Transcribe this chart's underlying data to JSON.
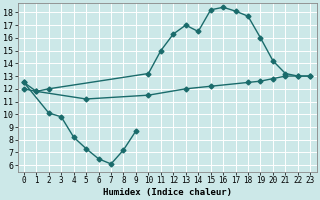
{
  "xlabel": "Humidex (Indice chaleur)",
  "bg_color": "#cce8e8",
  "line_color": "#1a6b6b",
  "grid_color": "#ffffff",
  "xlim": [
    -0.5,
    23.5
  ],
  "ylim": [
    5.5,
    18.7
  ],
  "xticks": [
    0,
    1,
    2,
    3,
    4,
    5,
    6,
    7,
    8,
    9,
    10,
    11,
    12,
    13,
    14,
    15,
    16,
    17,
    18,
    19,
    20,
    21,
    22,
    23
  ],
  "yticks": [
    6,
    7,
    8,
    9,
    10,
    11,
    12,
    13,
    14,
    15,
    16,
    17,
    18
  ],
  "line1_x": [
    0,
    1,
    2,
    10,
    11,
    12,
    13,
    14,
    15,
    16,
    17,
    18,
    19,
    20,
    21,
    22,
    23
  ],
  "line1_y": [
    12.5,
    11.8,
    12.0,
    13.2,
    15.0,
    16.3,
    17.0,
    16.5,
    18.2,
    18.4,
    18.1,
    17.7,
    16.0,
    14.2,
    13.2,
    13.0,
    13.0
  ],
  "line2_x": [
    0,
    2,
    3,
    4,
    5,
    6,
    7,
    8,
    9
  ],
  "line2_y": [
    12.5,
    10.1,
    9.8,
    8.2,
    7.3,
    6.5,
    6.1,
    7.2,
    8.7
  ],
  "line3_x": [
    0,
    1,
    5,
    10,
    13,
    15,
    18,
    19,
    20,
    21,
    22,
    23
  ],
  "line3_y": [
    12.0,
    11.8,
    11.2,
    11.5,
    12.0,
    12.2,
    12.5,
    12.6,
    12.8,
    13.0,
    13.0,
    13.0
  ],
  "marker": "D",
  "markersize": 2.5,
  "linewidth": 1.0
}
